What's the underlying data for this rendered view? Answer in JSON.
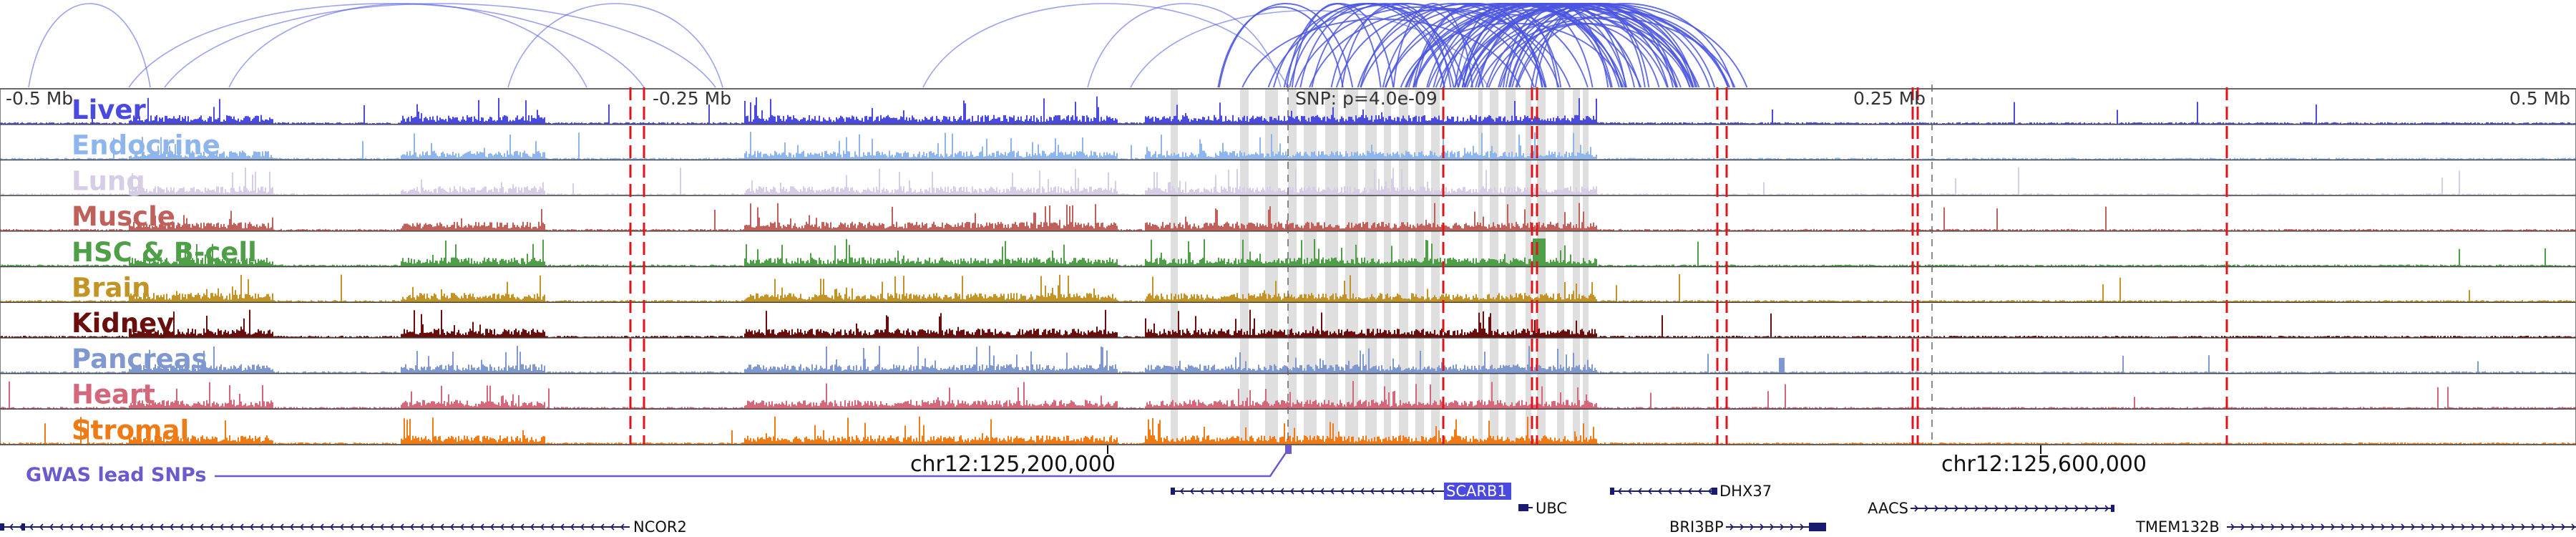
{
  "ruler": {
    "left_label": "-0.5 Mb",
    "mid_left_label": "-0.25 Mb",
    "snp_label": "SNP: p=4.0e-09",
    "mid_right_label": "0.25 Mb",
    "right_label": "0.5 Mb"
  },
  "tracks": [
    {
      "label": "Liver",
      "color": "#4a4adf"
    },
    {
      "label": "Endocrine",
      "color": "#8fb6ec"
    },
    {
      "label": "Lung",
      "color": "#d8cde6"
    },
    {
      "label": "Muscle",
      "color": "#c0605a"
    },
    {
      "label": "HSC & B-cell",
      "color": "#4f9e48"
    },
    {
      "label": "Brain",
      "color": "#c29426"
    },
    {
      "label": "Kidney",
      "color": "#6a0d0d"
    },
    {
      "label": "Pancreas",
      "color": "#8098d0"
    },
    {
      "label": "Heart",
      "color": "#d4687a"
    },
    {
      "label": "Stromal",
      "color": "#f07b15"
    }
  ],
  "gwas": {
    "label": "GWAS lead SNPs",
    "color": "#6a5acd"
  },
  "coordinates": {
    "left": "chr12:125,200,000",
    "right": "chr12:125,600,000"
  },
  "genes": {
    "scarb1": "SCARB1",
    "ubc": "UBC",
    "dhx37": "DHX37",
    "ncor2": "NCOR2",
    "bri3bp": "BRI3BP",
    "aacs": "AACS",
    "tmem132b": "TMEM132B"
  },
  "colors": {
    "arc": "#4a55e0",
    "marker": "#e0151b",
    "highlight": "#d9d9d9",
    "gene": "#1a1a6e",
    "gene_highlight": "#4a4adf"
  }
}
